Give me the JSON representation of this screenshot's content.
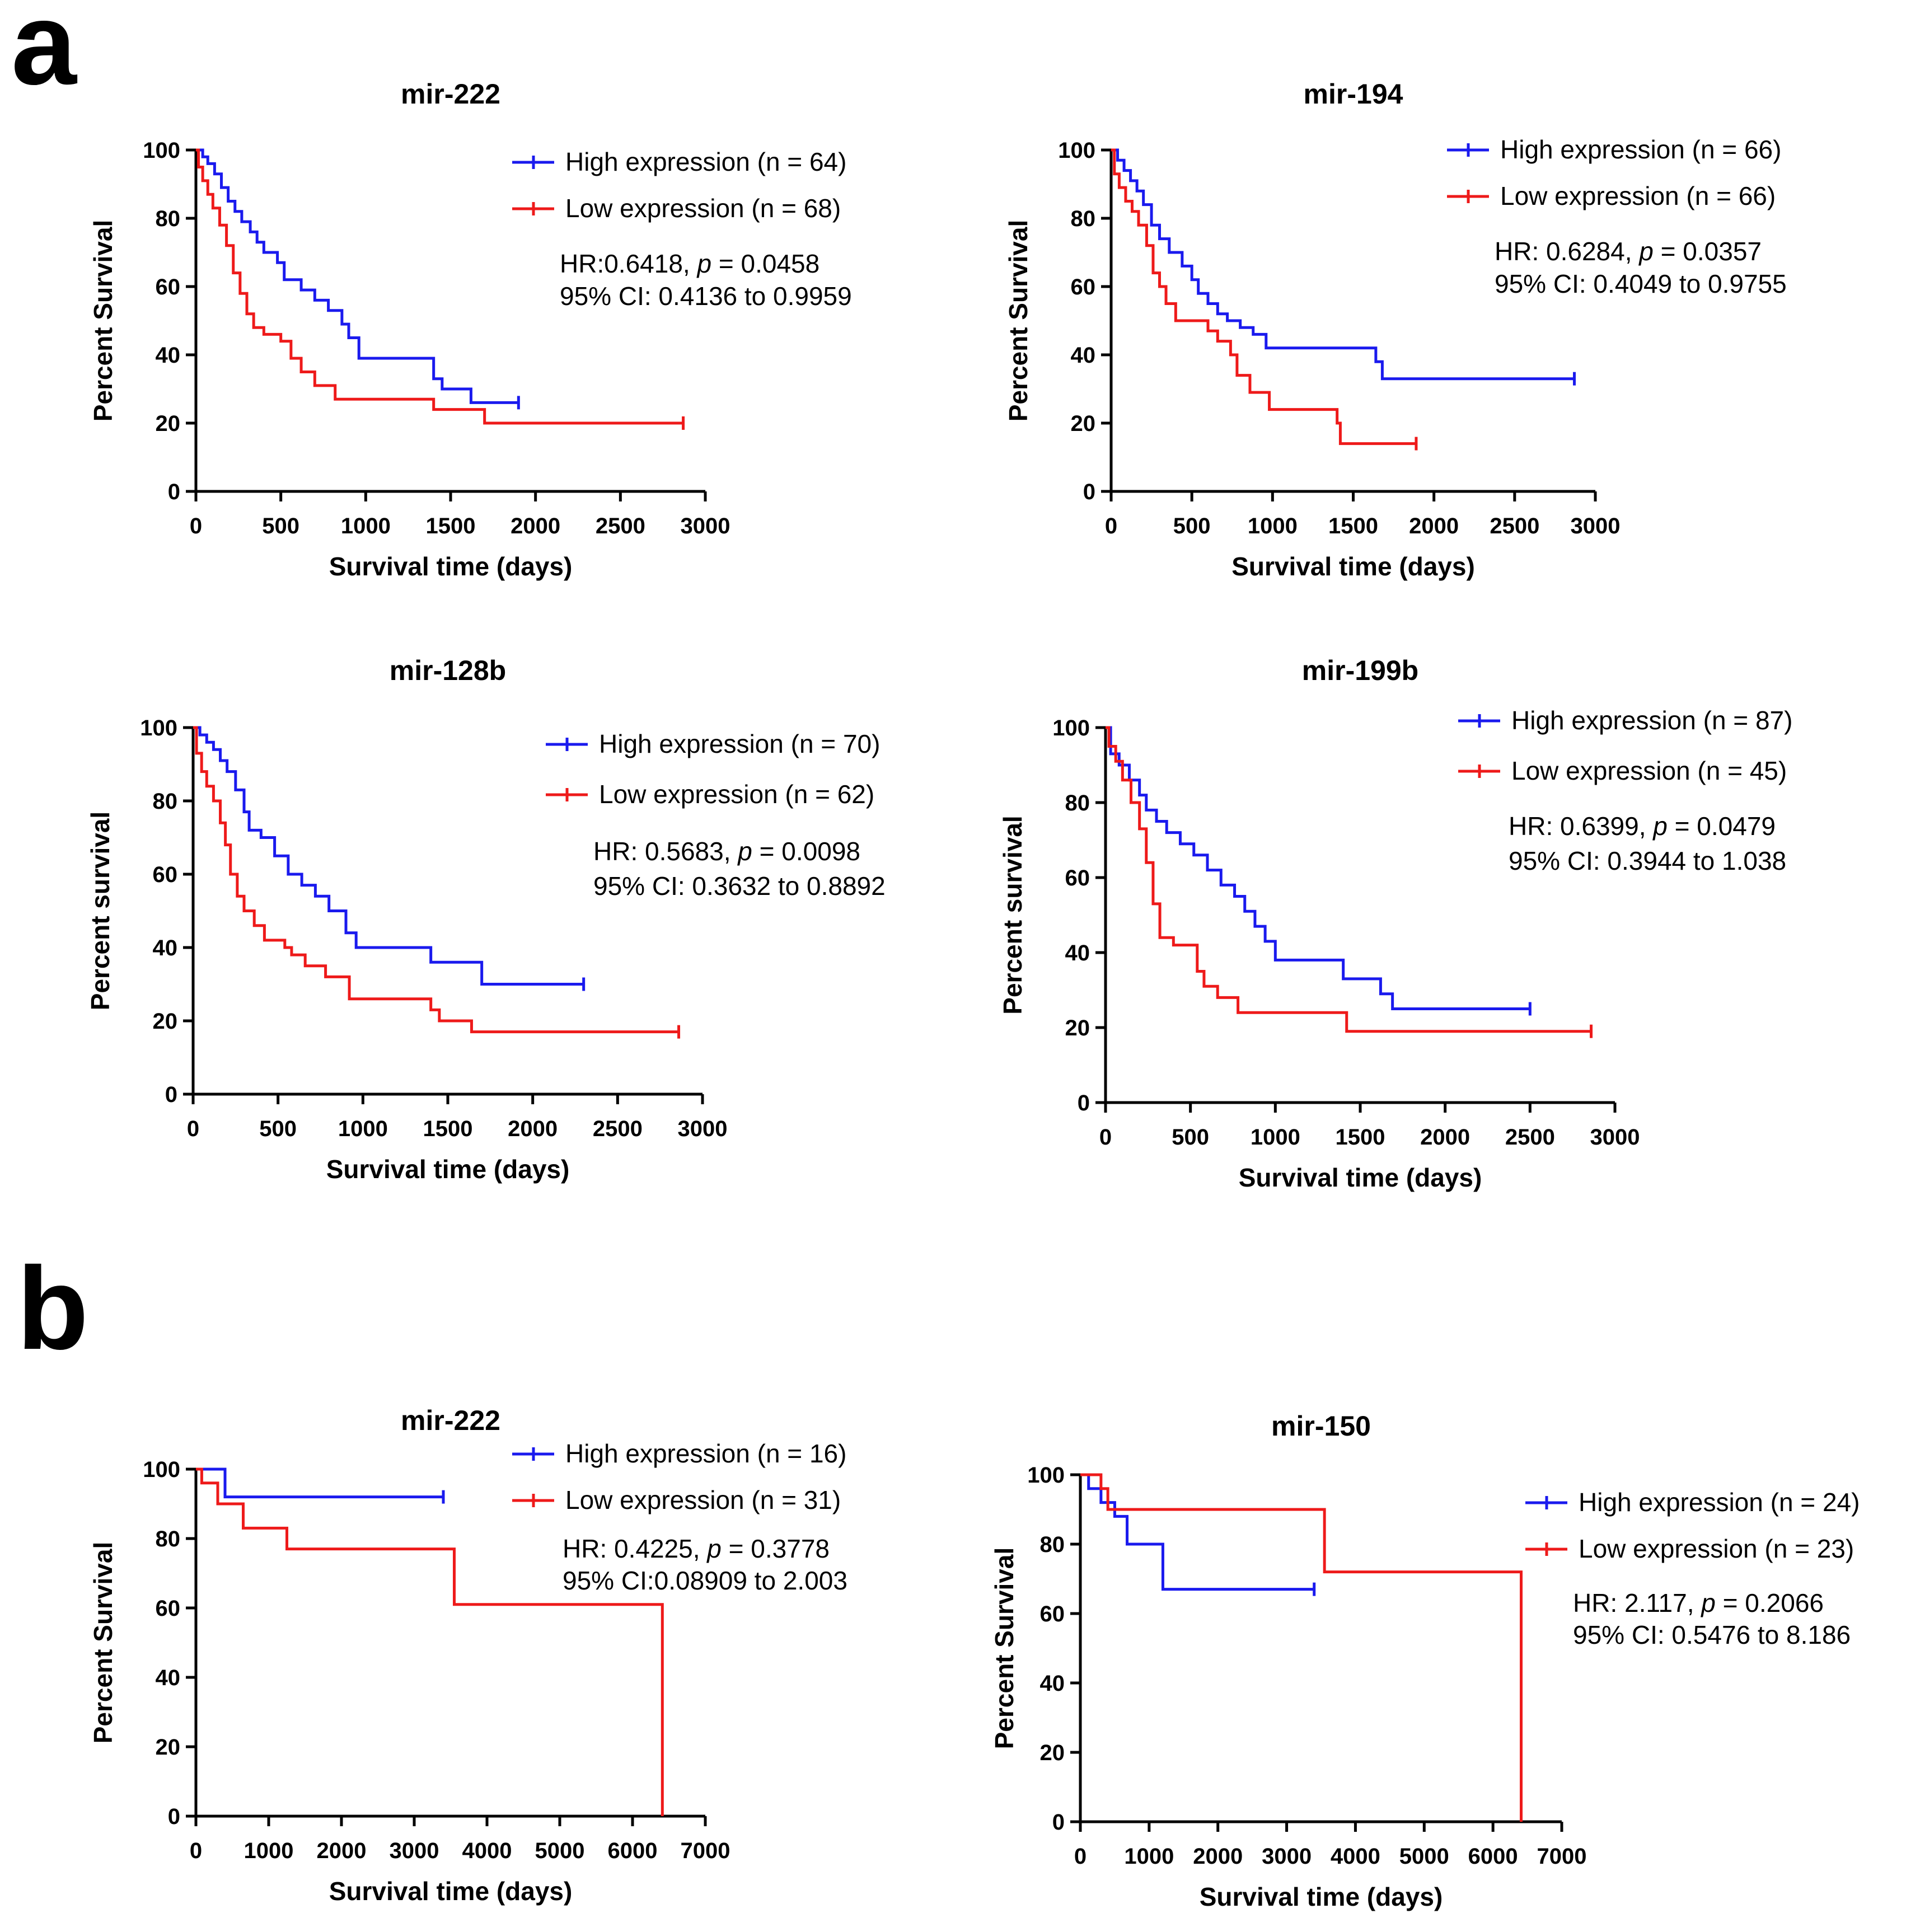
{
  "panels": [
    {
      "letter": "a"
    },
    {
      "letter": "b"
    }
  ],
  "chart_data": [
    {
      "type": "line",
      "subtype": "kaplan-meier",
      "panel": "a",
      "title": "mir-222",
      "xlabel": "Survival time (days)",
      "ylabel": "Percent Survival",
      "xlim": [
        0,
        3000
      ],
      "ylim": [
        0,
        100
      ],
      "xticks": [
        0,
        500,
        1000,
        1500,
        2000,
        2500,
        3000
      ],
      "yticks": [
        0,
        20,
        40,
        60,
        80,
        100
      ],
      "legend_position": "top-right",
      "series": [
        {
          "name": "High expression (n = 64)",
          "color": "#1a1aee",
          "x": [
            0,
            40,
            70,
            110,
            150,
            190,
            230,
            270,
            320,
            360,
            400,
            480,
            520,
            560,
            620,
            700,
            780,
            860,
            900,
            960,
            1400,
            1450,
            1620,
            1900
          ],
          "y": [
            100,
            98,
            96,
            93,
            89,
            85,
            82,
            79,
            76,
            73,
            70,
            67,
            62,
            62,
            59,
            56,
            53,
            49,
            45,
            39,
            33,
            30,
            26,
            26
          ]
        },
        {
          "name": "Low expression (n = 68)",
          "color": "#ee1a1a",
          "x": [
            0,
            15,
            40,
            70,
            100,
            140,
            180,
            220,
            260,
            300,
            340,
            400,
            500,
            560,
            620,
            700,
            820,
            1400,
            1700,
            2870
          ],
          "y": [
            100,
            95,
            91,
            87,
            83,
            78,
            72,
            64,
            58,
            52,
            48,
            46,
            44,
            39,
            35,
            31,
            27,
            24,
            20,
            20
          ]
        }
      ],
      "annotations": [
        "HR:0.6418, p = 0.0458",
        "95% CI: 0.4136 to 0.9959"
      ]
    },
    {
      "type": "line",
      "subtype": "kaplan-meier",
      "panel": "a",
      "title": "mir-194",
      "xlabel": "Survival time (days)",
      "ylabel": "Percent Survival",
      "xlim": [
        0,
        3000
      ],
      "ylim": [
        0,
        100
      ],
      "xticks": [
        0,
        500,
        1000,
        1500,
        2000,
        2500,
        3000
      ],
      "yticks": [
        0,
        20,
        40,
        60,
        80,
        100
      ],
      "legend_position": "top-right",
      "series": [
        {
          "name": "High expression (n = 66)",
          "color": "#1a1aee",
          "x": [
            0,
            40,
            80,
            120,
            160,
            200,
            250,
            300,
            360,
            440,
            500,
            540,
            600,
            660,
            720,
            800,
            880,
            960,
            1640,
            1680,
            2870
          ],
          "y": [
            100,
            97,
            94,
            91,
            88,
            84,
            78,
            74,
            70,
            66,
            62,
            58,
            55,
            52,
            50,
            48,
            46,
            42,
            38,
            33,
            33
          ]
        },
        {
          "name": "Low expression (n = 66)",
          "color": "#ee1a1a",
          "x": [
            0,
            20,
            50,
            90,
            130,
            170,
            220,
            260,
            300,
            340,
            400,
            600,
            660,
            740,
            780,
            860,
            980,
            1400,
            1420,
            1890
          ],
          "y": [
            100,
            93,
            89,
            85,
            82,
            78,
            72,
            64,
            60,
            55,
            50,
            47,
            44,
            40,
            34,
            29,
            24,
            20,
            14,
            14
          ]
        }
      ],
      "annotations": [
        "HR: 0.6284, p = 0.0357",
        "95% CI: 0.4049 to 0.9755"
      ]
    },
    {
      "type": "line",
      "subtype": "kaplan-meier",
      "panel": "a",
      "title": "mir-128b",
      "xlabel": "Survival time (days)",
      "ylabel": "Percent survival",
      "xlim": [
        0,
        3000
      ],
      "ylim": [
        0,
        100
      ],
      "xticks": [
        0,
        500,
        1000,
        1500,
        2000,
        2500,
        3000
      ],
      "yticks": [
        0,
        20,
        40,
        60,
        80,
        100
      ],
      "legend_position": "top-right",
      "series": [
        {
          "name": "High expression (n = 70)",
          "color": "#1a1aee",
          "x": [
            0,
            40,
            80,
            120,
            160,
            200,
            250,
            300,
            330,
            400,
            480,
            560,
            640,
            720,
            800,
            900,
            960,
            1400,
            1700,
            2300
          ],
          "y": [
            100,
            98,
            96,
            94,
            91,
            88,
            83,
            77,
            72,
            70,
            65,
            60,
            57,
            54,
            50,
            44,
            40,
            36,
            30,
            30
          ]
        },
        {
          "name": "Low expression (n = 62)",
          "color": "#ee1a1a",
          "x": [
            0,
            20,
            50,
            80,
            120,
            160,
            190,
            220,
            260,
            300,
            360,
            420,
            540,
            580,
            660,
            780,
            920,
            1400,
            1450,
            1640,
            2860
          ],
          "y": [
            100,
            93,
            88,
            84,
            80,
            74,
            68,
            60,
            54,
            50,
            46,
            42,
            40,
            38,
            35,
            32,
            26,
            23,
            20,
            17,
            17
          ]
        }
      ],
      "annotations": [
        "HR: 0.5683,  p = 0.0098",
        "95% CI: 0.3632 to 0.8892"
      ]
    },
    {
      "type": "line",
      "subtype": "kaplan-meier",
      "panel": "a",
      "title": "mir-199b",
      "xlabel": "Survival time (days)",
      "ylabel": "Percent survival",
      "xlim": [
        0,
        3000
      ],
      "ylim": [
        0,
        100
      ],
      "xticks": [
        0,
        500,
        1000,
        1500,
        2000,
        2500,
        3000
      ],
      "yticks": [
        0,
        20,
        40,
        60,
        80,
        100
      ],
      "legend_position": "top-right",
      "series": [
        {
          "name": "High expression (n = 87)",
          "color": "#1a1aee",
          "x": [
            0,
            30,
            80,
            140,
            200,
            240,
            300,
            360,
            440,
            520,
            600,
            680,
            760,
            820,
            880,
            940,
            1000,
            1400,
            1620,
            1690,
            2500
          ],
          "y": [
            100,
            93,
            90,
            86,
            82,
            78,
            75,
            72,
            69,
            66,
            62,
            58,
            55,
            51,
            47,
            43,
            38,
            33,
            29,
            25,
            25
          ]
        },
        {
          "name": "Low expression (n = 45)",
          "color": "#ee1a1a",
          "x": [
            0,
            20,
            60,
            100,
            150,
            200,
            240,
            280,
            320,
            400,
            540,
            580,
            660,
            780,
            1420,
            2860
          ],
          "y": [
            100,
            95,
            91,
            86,
            80,
            73,
            64,
            53,
            44,
            42,
            35,
            31,
            28,
            24,
            19,
            19
          ]
        }
      ],
      "annotations": [
        "HR: 0.6399, p = 0.0479",
        "95% CI: 0.3944 to 1.038"
      ]
    },
    {
      "type": "line",
      "subtype": "kaplan-meier",
      "panel": "b",
      "title": "mir-222",
      "xlabel": "Survival time (days)",
      "ylabel": "Percent Survival",
      "xlim": [
        0,
        7000
      ],
      "ylim": [
        0,
        100
      ],
      "xticks": [
        0,
        1000,
        2000,
        3000,
        4000,
        5000,
        6000,
        7000
      ],
      "yticks": [
        0,
        20,
        40,
        60,
        80,
        100
      ],
      "legend_position": "top-right",
      "series": [
        {
          "name": "High expression (n = 16)",
          "color": "#1a1aee",
          "x": [
            0,
            380,
            400,
            3400
          ],
          "y": [
            100,
            100,
            92,
            92
          ]
        },
        {
          "name": "Low expression (n = 31)",
          "color": "#ee1a1a",
          "x": [
            0,
            80,
            300,
            650,
            1250,
            3550,
            6400,
            6410
          ],
          "y": [
            100,
            96,
            90,
            83,
            77,
            61,
            61,
            0
          ]
        }
      ],
      "annotations": [
        "HR: 0.4225, p = 0.3778",
        "95% CI:0.08909 to 2.003"
      ]
    },
    {
      "type": "line",
      "subtype": "kaplan-meier",
      "panel": "b",
      "title": "mir-150",
      "xlabel": "Survival time (days)",
      "ylabel": "Percent Survival",
      "xlim": [
        0,
        7000
      ],
      "ylim": [
        0,
        100
      ],
      "xticks": [
        0,
        1000,
        2000,
        3000,
        4000,
        5000,
        6000,
        7000
      ],
      "yticks": [
        0,
        20,
        40,
        60,
        80,
        100
      ],
      "legend_position": "right",
      "series": [
        {
          "name": "High expression (n = 24)",
          "color": "#1a1aee",
          "x": [
            0,
            120,
            300,
            500,
            680,
            1200,
            3400
          ],
          "y": [
            100,
            96,
            92,
            88,
            80,
            67,
            67
          ]
        },
        {
          "name": "Low expression (n = 23)",
          "color": "#ee1a1a",
          "x": [
            0,
            300,
            400,
            3550,
            6400,
            6410
          ],
          "y": [
            100,
            96,
            90,
            72,
            72,
            0
          ]
        }
      ],
      "annotations": [
        "HR: 2.117, p = 0.2066",
        "95% CI: 0.5476 to 8.186"
      ]
    }
  ]
}
